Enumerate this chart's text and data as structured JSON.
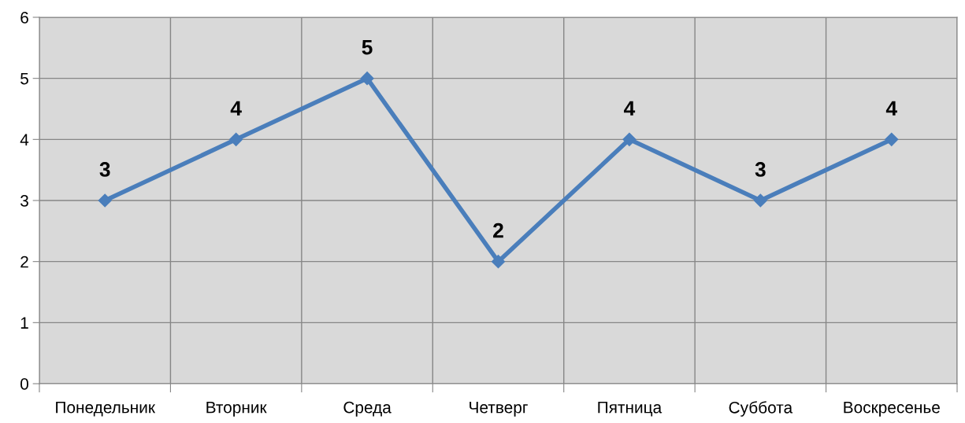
{
  "chart_data": {
    "type": "line",
    "categories": [
      "Понедельник",
      "Вторник",
      "Среда",
      "Четверг",
      "Пятница",
      "Суббота",
      "Воскресенье"
    ],
    "series": [
      {
        "color": "#4a7ebb",
        "values": [
          3,
          4,
          5,
          2,
          4,
          3,
          4
        ]
      }
    ],
    "ylim": [
      0,
      6
    ],
    "yticks": [
      0,
      1,
      2,
      3,
      4,
      5,
      6
    ],
    "grid": true,
    "marker": "diamond",
    "line_style": "solid",
    "data_labels": true
  }
}
